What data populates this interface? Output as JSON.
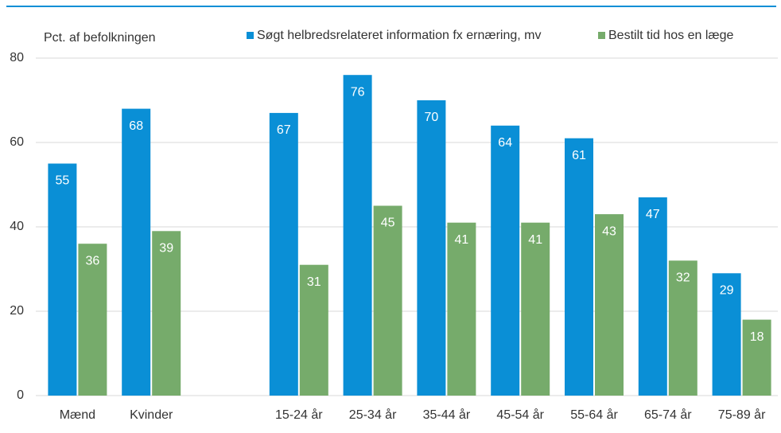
{
  "chart_data": {
    "type": "bar",
    "y_label": "Pct. af befolkningen",
    "categories": [
      "Mænd",
      "Kvinder",
      null,
      "15-24 år",
      "25-34 år",
      "35-44 år",
      "45-54 år",
      "55-64 år",
      "65-74 år",
      "75-89 år"
    ],
    "series": [
      {
        "name": "Søgt helbredsrelateret information fx ernæring, mv",
        "color": "#0a8fd6",
        "values": [
          55,
          68,
          null,
          67,
          76,
          70,
          64,
          61,
          47,
          29
        ]
      },
      {
        "name": "Bestilt tid hos en læge",
        "color": "#76ab6b",
        "values": [
          36,
          39,
          null,
          31,
          45,
          41,
          41,
          43,
          32,
          18
        ]
      }
    ],
    "ylim": [
      0,
      80
    ],
    "yticks": [
      0,
      20,
      40,
      60,
      80
    ],
    "grid": true,
    "legend": "top"
  }
}
